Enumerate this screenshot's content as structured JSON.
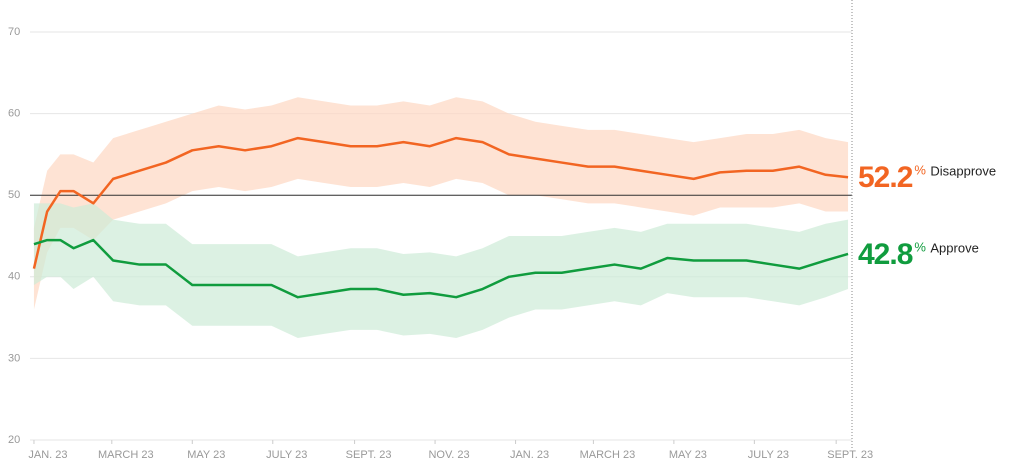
{
  "chart_data": {
    "type": "line",
    "x": [
      0,
      10,
      20,
      30,
      45,
      60,
      80,
      100,
      120,
      140,
      160,
      180,
      200,
      220,
      240,
      260,
      280,
      300,
      320,
      340,
      360,
      380,
      400,
      420,
      440,
      460,
      480,
      500,
      520,
      540,
      560,
      580,
      600,
      617
    ],
    "xlim": [
      -3,
      620
    ],
    "xticks": [
      {
        "value": 0,
        "label": "JAN. 23"
      },
      {
        "value": 59,
        "label": "MARCH 23"
      },
      {
        "value": 120,
        "label": "MAY 23"
      },
      {
        "value": 181,
        "label": "JULY 23"
      },
      {
        "value": 243,
        "label": "SEPT. 23"
      },
      {
        "value": 304,
        "label": "NOV. 23"
      },
      {
        "value": 365,
        "label": "JAN. 23"
      },
      {
        "value": 424,
        "label": "MARCH 23"
      },
      {
        "value": 485,
        "label": "MAY 23"
      },
      {
        "value": 546,
        "label": "JULY 23"
      },
      {
        "value": 608,
        "label": "SEPT. 23"
      }
    ],
    "ylim": [
      20,
      70
    ],
    "yticks": [
      20,
      30,
      40,
      50,
      60,
      70
    ],
    "grid": true,
    "reference_line": 50,
    "unit": "%",
    "series": [
      {
        "name": "Disapprove",
        "color": "#f26522",
        "band_color": "#fdd7c2",
        "current_label": "52.2",
        "values": [
          41,
          48,
          50.5,
          50.5,
          49,
          52,
          53,
          54,
          55.5,
          56,
          55.5,
          56,
          57,
          56.5,
          56,
          56,
          56.5,
          56,
          57,
          56.5,
          55,
          54.5,
          54,
          53.5,
          53.5,
          53,
          52.5,
          52,
          52.8,
          53,
          53,
          53.5,
          52.5,
          52.2
        ],
        "band_upper": [
          46,
          53,
          55,
          55,
          54,
          57,
          58,
          59,
          60,
          61,
          60.5,
          61,
          62,
          61.5,
          61,
          61,
          61.5,
          61,
          62,
          61.5,
          60,
          59,
          58.5,
          58,
          58,
          57.5,
          57,
          56.5,
          57,
          57.5,
          57.5,
          58,
          57,
          56.5
        ],
        "band_lower": [
          36,
          43,
          46,
          46,
          44.5,
          47,
          48,
          49,
          50.5,
          51,
          50.5,
          51,
          52,
          51.5,
          51,
          51,
          51.5,
          51,
          52,
          51.5,
          50,
          50,
          49.5,
          49,
          49,
          48.5,
          48,
          47.5,
          48.5,
          48.5,
          48.5,
          49,
          48,
          48
        ]
      },
      {
        "name": "Approve",
        "color": "#109c3e",
        "band_color": "#cdebd7",
        "current_label": "42.8",
        "values": [
          44,
          44.5,
          44.5,
          43.5,
          44.5,
          42,
          41.5,
          41.5,
          39,
          39,
          39,
          39,
          37.5,
          38,
          38.5,
          38.5,
          37.8,
          38,
          37.5,
          38.5,
          40,
          40.5,
          40.5,
          41,
          41.5,
          41,
          42.3,
          42,
          42,
          42,
          41.5,
          41,
          42,
          42.8
        ],
        "band_upper": [
          49,
          49,
          49,
          48.5,
          49,
          47,
          46.5,
          46.5,
          44,
          44,
          44,
          44,
          42.5,
          43,
          43.5,
          43.5,
          42.8,
          43,
          42.5,
          43.5,
          45,
          45,
          45,
          45.5,
          46,
          45.5,
          46.5,
          46.5,
          46.5,
          46.5,
          46,
          45.5,
          46.5,
          47
        ],
        "band_lower": [
          39,
          40,
          40,
          38.5,
          40,
          37,
          36.5,
          36.5,
          34,
          34,
          34,
          34,
          32.5,
          33,
          33.5,
          33.5,
          32.8,
          33,
          32.5,
          33.5,
          35,
          36,
          36,
          36.5,
          37,
          36.5,
          38,
          37.5,
          37.5,
          37.5,
          37,
          36.5,
          37.5,
          38.5
        ]
      }
    ]
  }
}
